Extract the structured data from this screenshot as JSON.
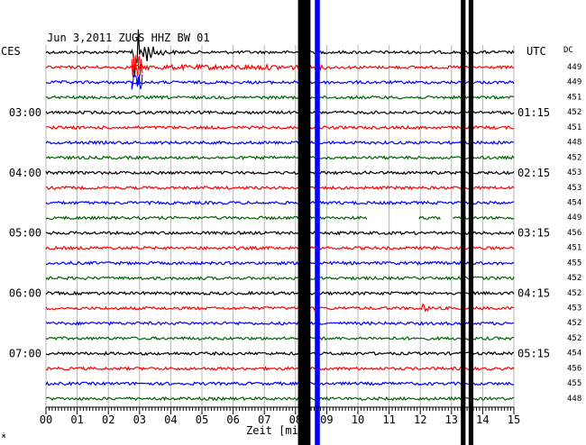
{
  "chart_data": {
    "type": "line",
    "title": "Jun 3,2011   ZUGS HHZ BW 01",
    "left_header": "CES",
    "right_header": "UTC",
    "dc_header": "DC",
    "xlabel": "Zeit [min]",
    "xlim": [
      0,
      15
    ],
    "x_ticks": [
      "00",
      "01",
      "02",
      "03",
      "04",
      "05",
      "06",
      "07",
      "08",
      "09",
      "10",
      "11",
      "12",
      "13",
      "14",
      "15"
    ],
    "grid": true,
    "trace_colors": [
      "#000000",
      "#ff0000",
      "#0000ff",
      "#006400"
    ],
    "traces": 24,
    "trace_minutes": 15,
    "left_time_labels": [
      {
        "trace": 4,
        "text": "03:00"
      },
      {
        "trace": 8,
        "text": "04:00"
      },
      {
        "trace": 12,
        "text": "05:00"
      },
      {
        "trace": 16,
        "text": "06:00"
      },
      {
        "trace": 20,
        "text": "07:00"
      }
    ],
    "right_time_labels": [
      {
        "trace": 4,
        "text": "01:15"
      },
      {
        "trace": 8,
        "text": "02:15"
      },
      {
        "trace": 12,
        "text": "03:15"
      },
      {
        "trace": 16,
        "text": "04:15"
      },
      {
        "trace": 20,
        "text": "05:15"
      }
    ],
    "dc_values": [
      "449",
      "449",
      "451",
      "452",
      "451",
      "448",
      "452",
      "453",
      "453",
      "454",
      "449",
      "456",
      "451",
      "455",
      "452",
      "452",
      "453",
      "452",
      "452",
      "454",
      "456",
      "455",
      "448"
    ],
    "events": [
      {
        "name": "earthquake",
        "trace_start": 0,
        "minute": 2.75,
        "peak": "large",
        "coda_minutes": 6
      },
      {
        "name": "small-event",
        "trace_start": 17,
        "minute": 12.0,
        "peak": "small",
        "coda_minutes": 0.6
      }
    ],
    "vertical_bands": [
      {
        "x_start": 8.08,
        "x_end": 8.48,
        "color": "#000000"
      },
      {
        "x_start": 8.62,
        "x_end": 8.78,
        "color": "#0000ff"
      },
      {
        "x_start": 13.3,
        "x_end": 13.45,
        "color": "#000000"
      },
      {
        "x_start": 13.55,
        "x_end": 13.7,
        "color": "#000000"
      }
    ],
    "gaps": [
      {
        "trace": 11,
        "x_start": 10.3,
        "x_end": 11.95
      },
      {
        "trace": 11,
        "x_start": 12.65,
        "x_end": 13.0
      }
    ]
  }
}
